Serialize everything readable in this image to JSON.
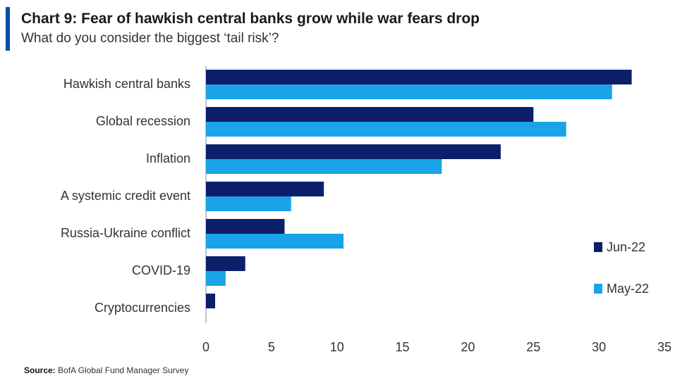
{
  "header": {
    "title": "Chart 9: Fear of hawkish central banks grow while war fears drop",
    "subtitle": "What do you consider the biggest ‘tail risk’?"
  },
  "source": {
    "label": "Source:",
    "text": "BofA Global Fund Manager Survey"
  },
  "colors": {
    "accent": "#0a4aa6",
    "jun": "#0b1f6b",
    "may": "#1aa3e8"
  },
  "chart_data": {
    "type": "bar",
    "orientation": "horizontal",
    "title": "Chart 9: Fear of hawkish central banks grow while war fears drop",
    "subtitle": "What do you consider the biggest ‘tail risk’?",
    "categories": [
      "Hawkish central banks",
      "Global recession",
      "Inflation",
      "A systemic credit event",
      "Russia-Ukraine conflict",
      "COVID-19",
      "Cryptocurrencies"
    ],
    "series": [
      {
        "name": "Jun-22",
        "color": "#0b1f6b",
        "values": [
          32.5,
          25,
          22.5,
          9,
          6,
          3,
          0.7
        ]
      },
      {
        "name": "May-22",
        "color": "#1aa3e8",
        "values": [
          31,
          27.5,
          18,
          6.5,
          10.5,
          1.5,
          0
        ]
      }
    ],
    "xlim": [
      0,
      35
    ],
    "xticks": [
      "0",
      "5",
      "10",
      "15",
      "20",
      "25",
      "30",
      "35"
    ],
    "xlabel": "",
    "ylabel": "",
    "legend_position": "right",
    "grid": false
  }
}
